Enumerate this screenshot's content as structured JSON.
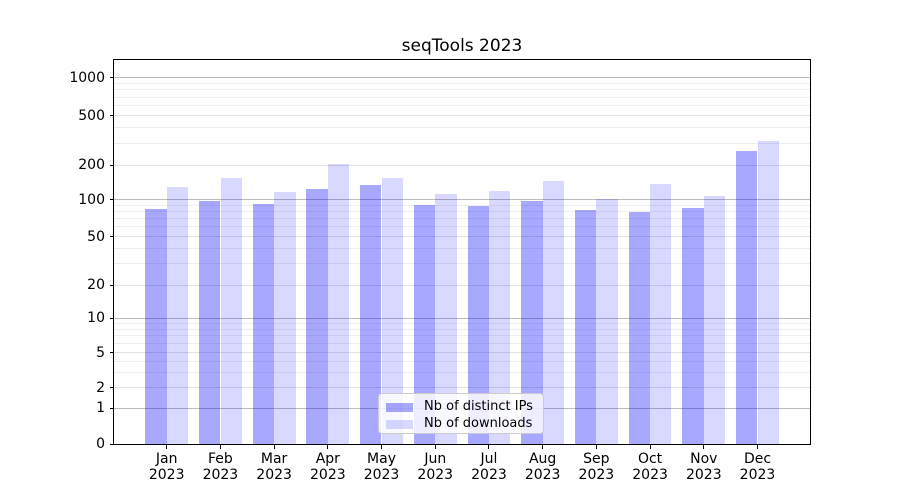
{
  "title": "seqTools 2023",
  "colors": {
    "bar_distinct_ips": "rgba(0,0,255,0.34)",
    "bar_downloads": "rgba(0,0,255,0.15)",
    "grid_major": "#bdbdbd",
    "grid_sub": "#e2e2e2",
    "grid_minor": "#eeeeee",
    "axis": "#000000",
    "legend_border": "#cccccc"
  },
  "legend": {
    "items": [
      {
        "label": "Nb of distinct IPs",
        "color_key": "bar_distinct_ips"
      },
      {
        "label": "Nb of downloads",
        "color_key": "bar_downloads"
      }
    ]
  },
  "y_axis": {
    "tick_values": [
      0,
      1,
      2,
      5,
      10,
      20,
      50,
      100,
      200,
      500,
      1000
    ],
    "tick_labels": [
      "0",
      "1",
      "2",
      "5",
      "10",
      "20",
      "50",
      "100",
      "200",
      "500",
      "1000"
    ]
  },
  "x_axis": {
    "months": [
      "Jan",
      "Feb",
      "Mar",
      "Apr",
      "May",
      "Jun",
      "Jul",
      "Aug",
      "Sep",
      "Oct",
      "Nov",
      "Dec"
    ],
    "year": "2023"
  },
  "chart_data": {
    "type": "bar",
    "title": "seqTools 2023",
    "xlabel": "",
    "ylabel": "",
    "y_scale": "log-like (symlog: linear 0-1, logarithmic above)",
    "y_ticks": [
      0,
      1,
      2,
      5,
      10,
      20,
      50,
      100,
      200,
      500,
      1000
    ],
    "ylim": [
      0,
      1400
    ],
    "grid": "both major and minor, horizontal only",
    "legend_position": "lower center inside plot",
    "categories": [
      "Jan 2023",
      "Feb 2023",
      "Mar 2023",
      "Apr 2023",
      "May 2023",
      "Jun 2023",
      "Jul 2023",
      "Aug 2023",
      "Sep 2023",
      "Oct 2023",
      "Nov 2023",
      "Dec 2023"
    ],
    "series": [
      {
        "name": "Nb of distinct IPs",
        "values": [
          84,
          97,
          92,
          124,
          135,
          90,
          89,
          97,
          83,
          80,
          85,
          260
        ]
      },
      {
        "name": "Nb of downloads",
        "values": [
          130,
          155,
          117,
          203,
          155,
          113,
          119,
          145,
          102,
          138,
          108,
          310
        ]
      }
    ]
  }
}
